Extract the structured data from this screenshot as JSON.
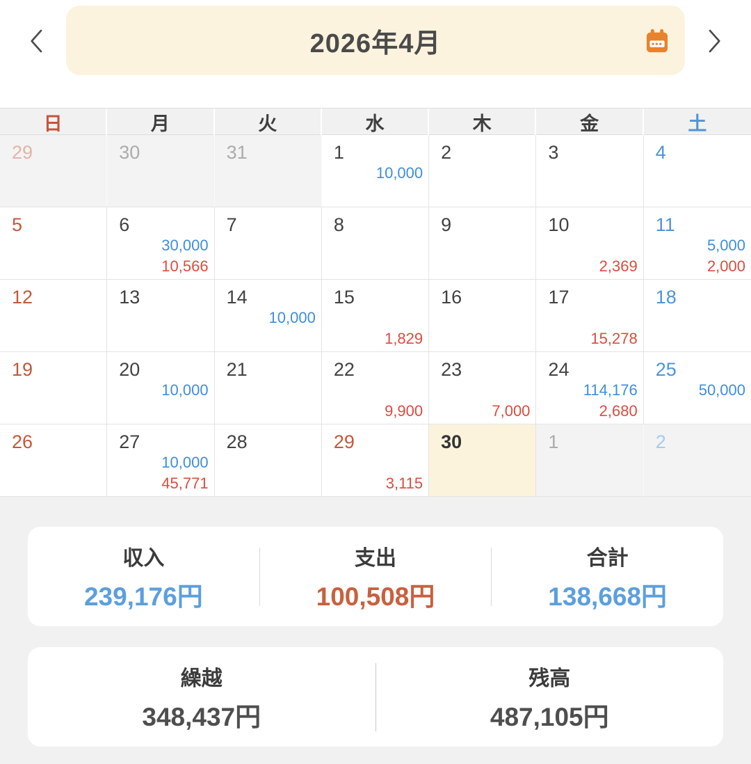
{
  "header": {
    "title": "2026年4月",
    "prev_icon": "chevron-left",
    "next_icon": "chevron-right",
    "calendar_icon": "calendar"
  },
  "weekdays": [
    {
      "label": "日",
      "type": "sun"
    },
    {
      "label": "月",
      "type": "wd"
    },
    {
      "label": "火",
      "type": "wd"
    },
    {
      "label": "水",
      "type": "wd"
    },
    {
      "label": "木",
      "type": "wd"
    },
    {
      "label": "金",
      "type": "wd"
    },
    {
      "label": "土",
      "type": "sat"
    }
  ],
  "calendar": {
    "weeks": [
      [
        {
          "date": "29",
          "month": "prev",
          "day": "sun"
        },
        {
          "date": "30",
          "month": "prev"
        },
        {
          "date": "31",
          "month": "prev"
        },
        {
          "date": "1",
          "income": "10,000"
        },
        {
          "date": "2"
        },
        {
          "date": "3"
        },
        {
          "date": "4",
          "day": "sat"
        }
      ],
      [
        {
          "date": "5",
          "day": "sun"
        },
        {
          "date": "6",
          "income": "30,000",
          "expense": "10,566"
        },
        {
          "date": "7"
        },
        {
          "date": "8"
        },
        {
          "date": "9"
        },
        {
          "date": "10",
          "expense": "2,369"
        },
        {
          "date": "11",
          "day": "sat",
          "income": "5,000",
          "expense": "2,000"
        }
      ],
      [
        {
          "date": "12",
          "day": "sun"
        },
        {
          "date": "13"
        },
        {
          "date": "14",
          "income": "10,000"
        },
        {
          "date": "15",
          "expense": "1,829"
        },
        {
          "date": "16"
        },
        {
          "date": "17",
          "expense": "15,278"
        },
        {
          "date": "18",
          "day": "sat"
        }
      ],
      [
        {
          "date": "19",
          "day": "sun"
        },
        {
          "date": "20",
          "income": "10,000"
        },
        {
          "date": "21"
        },
        {
          "date": "22",
          "expense": "9,900"
        },
        {
          "date": "23",
          "expense": "7,000"
        },
        {
          "date": "24",
          "income": "114,176",
          "expense": "2,680"
        },
        {
          "date": "25",
          "day": "sat",
          "income": "50,000"
        }
      ],
      [
        {
          "date": "26",
          "day": "sun"
        },
        {
          "date": "27",
          "income": "10,000",
          "expense": "45,771"
        },
        {
          "date": "28"
        },
        {
          "date": "29",
          "holiday": true,
          "expense": "3,115"
        },
        {
          "date": "30",
          "today": true
        },
        {
          "date": "1",
          "month": "next"
        },
        {
          "date": "2",
          "month": "next",
          "day": "sat"
        }
      ]
    ]
  },
  "summary": {
    "income_label": "収入",
    "income_value": "239,176円",
    "expense_label": "支出",
    "expense_value": "100,508円",
    "total_label": "合計",
    "total_value": "138,668円"
  },
  "balance": {
    "carryover_label": "繰越",
    "carryover_value": "348,437円",
    "balance_label": "残高",
    "balance_value": "487,105円"
  },
  "colors": {
    "income_blue": "#3E8EDE",
    "expense_red": "#DC4C3F",
    "sunday_red": "#C2593B",
    "saturday_blue": "#4E94D8",
    "accent_orange": "#E8822D",
    "header_cream": "#FBF3DE",
    "today_bg": "#FBF3DC",
    "summary_income_blue": "#5C9FDD",
    "summary_expense_orange": "#C9603E"
  }
}
